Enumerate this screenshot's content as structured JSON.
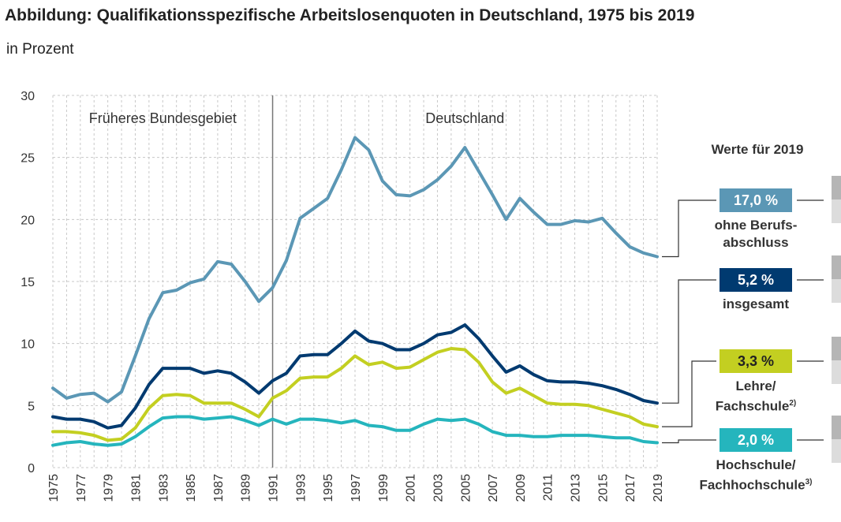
{
  "title": "Abbildung: Qualifikationsspezifische Arbeitslosenquoten in Deutschland, 1975 bis 2019",
  "subtitle": "in Prozent",
  "regions": {
    "west": "Früheres Bundesgebiet",
    "unified": "Deutschland"
  },
  "panel": {
    "title": "Werte für 2019",
    "items": [
      {
        "value": "17,0 %",
        "label1": "ohne Berufs-",
        "label2": "abschluss",
        "sup": "",
        "color": "#5b97b5"
      },
      {
        "value": "5,2 %",
        "label1": "insgesamt",
        "label2": "",
        "sup": "",
        "color": "#003a70"
      },
      {
        "value": "3,3 %",
        "label1": "Lehre/",
        "label2": "Fachschule",
        "sup": "2)",
        "color": "#c3cf21"
      },
      {
        "value": "2,0 %",
        "label1": "Hochschule/",
        "label2": "Fachhochschule",
        "sup": "3)",
        "color": "#25b5bd"
      }
    ]
  },
  "chart_data": {
    "type": "line",
    "x": [
      1975,
      1976,
      1977,
      1978,
      1979,
      1980,
      1981,
      1982,
      1983,
      1984,
      1985,
      1986,
      1987,
      1988,
      1989,
      1990,
      1991,
      1992,
      1993,
      1994,
      1995,
      1996,
      1997,
      1998,
      1999,
      2000,
      2001,
      2002,
      2003,
      2004,
      2005,
      2006,
      2007,
      2008,
      2009,
      2010,
      2011,
      2012,
      2013,
      2014,
      2015,
      2016,
      2017,
      2018,
      2019
    ],
    "x_tick_labels": [
      "1975",
      "1977",
      "1979",
      "1981",
      "1983",
      "1985",
      "1987",
      "1989",
      "1991",
      "1993",
      "1995",
      "1997",
      "1999",
      "2001",
      "2003",
      "2005",
      "2007",
      "2009",
      "2011",
      "2013",
      "2015",
      "2017",
      "2019"
    ],
    "ylim": [
      0,
      30
    ],
    "y_ticks": [
      0,
      5,
      10,
      15,
      20,
      25,
      30
    ],
    "grid": true,
    "divider_x": 1991,
    "series": [
      {
        "name": "ohne Berufsabschluss",
        "color": "#5b97b5",
        "values": [
          6.4,
          5.6,
          5.9,
          6.0,
          5.3,
          6.1,
          9.0,
          12.0,
          14.1,
          14.3,
          14.9,
          15.2,
          16.6,
          16.4,
          15.0,
          13.4,
          14.5,
          16.7,
          20.1,
          20.9,
          21.7,
          24.0,
          26.6,
          25.6,
          23.1,
          22.0,
          21.9,
          22.4,
          23.2,
          24.3,
          25.8,
          23.9,
          22.0,
          20.0,
          21.7,
          20.6,
          19.6,
          19.6,
          19.9,
          19.8,
          20.1,
          18.9,
          17.8,
          17.3,
          17.0
        ]
      },
      {
        "name": "insgesamt",
        "color": "#003a70",
        "values": [
          4.1,
          3.9,
          3.9,
          3.7,
          3.2,
          3.4,
          4.8,
          6.7,
          8.0,
          8.0,
          8.0,
          7.6,
          7.8,
          7.6,
          6.9,
          6.0,
          7.0,
          7.6,
          9.0,
          9.1,
          9.1,
          10.0,
          11.0,
          10.2,
          10.0,
          9.5,
          9.5,
          10.0,
          10.7,
          10.9,
          11.5,
          10.4,
          9.0,
          7.7,
          8.2,
          7.5,
          7.0,
          6.9,
          6.9,
          6.8,
          6.6,
          6.3,
          5.9,
          5.4,
          5.2
        ]
      },
      {
        "name": "Lehre/Fachschule",
        "color": "#c3cf21",
        "values": [
          2.9,
          2.9,
          2.8,
          2.6,
          2.2,
          2.3,
          3.2,
          4.8,
          5.8,
          5.9,
          5.8,
          5.2,
          5.2,
          5.2,
          4.7,
          4.1,
          5.6,
          6.2,
          7.2,
          7.3,
          7.3,
          8.0,
          9.0,
          8.3,
          8.5,
          8.0,
          8.1,
          8.7,
          9.3,
          9.6,
          9.5,
          8.5,
          6.9,
          6.0,
          6.4,
          5.8,
          5.2,
          5.1,
          5.1,
          5.0,
          4.7,
          4.4,
          4.1,
          3.5,
          3.3
        ]
      },
      {
        "name": "Hochschule/Fachhochschule",
        "color": "#25b5bd",
        "values": [
          1.8,
          2.0,
          2.1,
          1.9,
          1.8,
          1.9,
          2.5,
          3.3,
          4.0,
          4.1,
          4.1,
          3.9,
          4.0,
          4.1,
          3.8,
          3.4,
          3.9,
          3.5,
          3.9,
          3.9,
          3.8,
          3.6,
          3.8,
          3.4,
          3.3,
          3.0,
          3.0,
          3.5,
          3.9,
          3.8,
          3.9,
          3.5,
          2.9,
          2.6,
          2.6,
          2.5,
          2.5,
          2.6,
          2.6,
          2.6,
          2.5,
          2.4,
          2.4,
          2.1,
          2.0
        ]
      }
    ]
  }
}
